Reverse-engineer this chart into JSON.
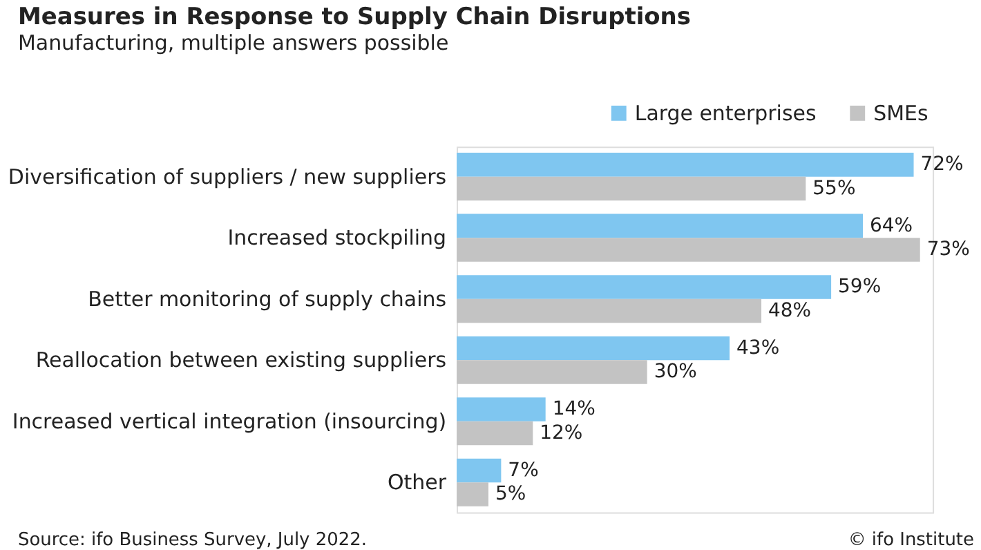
{
  "chart_data": {
    "type": "bar",
    "orientation": "horizontal",
    "title": "Measures in Response to Supply Chain Disruptions",
    "subtitle": "Manufacturing, multiple answers possible",
    "categories": [
      "Diversification of suppliers / new suppliers",
      "Increased stockpiling",
      "Better monitoring of supply chains",
      "Reallocation between existing suppliers",
      "Increased vertical integration (insourcing)",
      "Other"
    ],
    "series": [
      {
        "name": "Large enterprises",
        "color": "#7fc6f0",
        "values": [
          72,
          64,
          59,
          43,
          14,
          7
        ],
        "value_labels": [
          "72%",
          "64%",
          "59%",
          "43%",
          "14%",
          "7%"
        ]
      },
      {
        "name": "SMEs",
        "color": "#c3c3c3",
        "values": [
          55,
          73,
          48,
          30,
          12,
          5
        ],
        "value_labels": [
          "55%",
          "73%",
          "48%",
          "30%",
          "12%",
          "5%"
        ]
      }
    ],
    "xlim": [
      0,
      75
    ],
    "tick_labels": "y",
    "grid": false,
    "legend": "top right",
    "annotations": [
      "Source: ifo Business Survey, July 2022.",
      "© ifo Institute"
    ]
  }
}
